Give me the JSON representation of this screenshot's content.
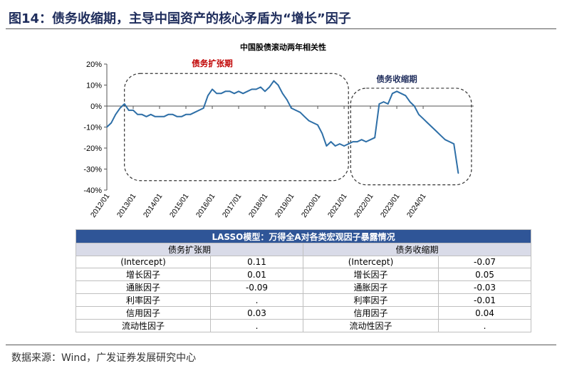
{
  "figure": {
    "title": "图14：债务收缩期，主导中国资产的核心矛盾为“增长”因子",
    "source": "数据来源：Wind，广发证券发展研究中心"
  },
  "chart_data": {
    "type": "line",
    "title": "中国股债滚动两年相关性",
    "xlabel": "",
    "ylabel": "",
    "ylim": [
      -0.4,
      0.2
    ],
    "yticks": [
      "20%",
      "10%",
      "0%",
      "-10%",
      "-20%",
      "-30%",
      "-40%"
    ],
    "xlim": [
      "2012-01",
      "2025-12"
    ],
    "xticks": [
      "2012/01",
      "2013/01",
      "2014/01",
      "2015/01",
      "2016/01",
      "2017/01",
      "2018/01",
      "2019/01",
      "2020/01",
      "2021/01",
      "2022/01",
      "2023/01",
      "2024/01"
    ],
    "grid": false,
    "color": "#2e6fa7",
    "series": [
      {
        "x": [
          "2012-01",
          "2012-03",
          "2012-05",
          "2012-07",
          "2012-09",
          "2012-11",
          "2013-01",
          "2013-03",
          "2013-05",
          "2013-07",
          "2013-09",
          "2013-11",
          "2014-01",
          "2014-03",
          "2014-05",
          "2014-07",
          "2014-09",
          "2014-11",
          "2015-01",
          "2015-03",
          "2015-05",
          "2015-07",
          "2015-09",
          "2015-11",
          "2016-01",
          "2016-03",
          "2016-05",
          "2016-07",
          "2016-09",
          "2016-11",
          "2017-01",
          "2017-03",
          "2017-05",
          "2017-07",
          "2017-09",
          "2017-11",
          "2018-01",
          "2018-03",
          "2018-05",
          "2018-07",
          "2018-09",
          "2018-11",
          "2019-01",
          "2019-03",
          "2019-05",
          "2019-07",
          "2019-09",
          "2019-11",
          "2020-01",
          "2020-03",
          "2020-05",
          "2020-07",
          "2020-09",
          "2020-11",
          "2021-01",
          "2021-03",
          "2021-05",
          "2021-07",
          "2021-09",
          "2021-11",
          "2022-01",
          "2022-03",
          "2022-05",
          "2022-07",
          "2022-09",
          "2022-11",
          "2023-01",
          "2023-03",
          "2023-05",
          "2023-07",
          "2023-09",
          "2023-11",
          "2024-01",
          "2024-03",
          "2024-05",
          "2024-07",
          "2024-09",
          "2024-11",
          "2025-01",
          "2025-03",
          "2025-05"
        ],
        "values": [
          -0.1,
          -0.08,
          -0.04,
          -0.01,
          0.01,
          -0.02,
          -0.02,
          -0.04,
          -0.04,
          -0.05,
          -0.04,
          -0.05,
          -0.05,
          -0.05,
          -0.04,
          -0.04,
          -0.05,
          -0.05,
          -0.04,
          -0.04,
          -0.03,
          -0.02,
          -0.01,
          0.05,
          0.08,
          0.06,
          0.06,
          0.07,
          0.07,
          0.06,
          0.07,
          0.06,
          0.07,
          0.08,
          0.08,
          0.09,
          0.07,
          0.09,
          0.12,
          0.1,
          0.06,
          0.03,
          -0.01,
          -0.02,
          -0.03,
          -0.05,
          -0.07,
          -0.08,
          -0.09,
          -0.13,
          -0.19,
          -0.17,
          -0.19,
          -0.18,
          -0.19,
          -0.18,
          -0.17,
          -0.17,
          -0.16,
          -0.17,
          -0.16,
          -0.15,
          0.01,
          0.02,
          0.01,
          0.06,
          0.07,
          0.06,
          0.05,
          0.02,
          0.0,
          -0.04,
          -0.06,
          -0.08,
          -0.1,
          -0.12,
          -0.14,
          -0.16,
          -0.17,
          -0.18,
          -0.32
        ]
      }
    ],
    "annotations": [
      {
        "text": "债务扩张期",
        "color": "#c00000"
      },
      {
        "text": "债务收缩期",
        "color": "#1f2d5c"
      }
    ]
  },
  "table": {
    "title": "LASSO模型：万得全A对各类宏观因子暴露情况",
    "left_header": "债务扩张期",
    "right_header": "债务收缩期",
    "rows": [
      {
        "left_name": "(Intercept)",
        "left_val": "0.11",
        "right_name": "(Intercept)",
        "right_val": "-0.07"
      },
      {
        "left_name": "增长因子",
        "left_val": "0.01",
        "right_name": "增长因子",
        "right_val": "0.05"
      },
      {
        "left_name": "通胀因子",
        "left_val": "-0.09",
        "right_name": "通胀因子",
        "right_val": "-0.03"
      },
      {
        "left_name": "利率因子",
        "left_val": ".",
        "right_name": "利率因子",
        "right_val": "-0.01"
      },
      {
        "left_name": "信用因子",
        "left_val": "0.03",
        "right_name": "信用因子",
        "right_val": "0.04"
      },
      {
        "left_name": "流动性因子",
        "left_val": ".",
        "right_name": "流动性因子",
        "right_val": "."
      }
    ]
  }
}
